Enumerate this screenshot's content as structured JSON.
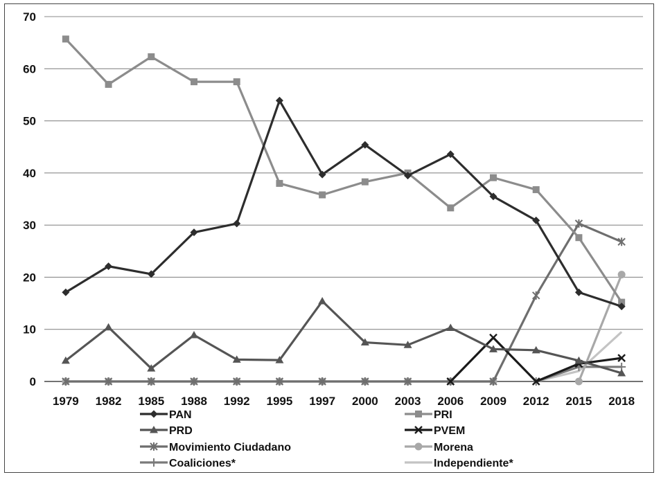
{
  "chart_data": {
    "type": "line",
    "title": "",
    "xlabel": "",
    "ylabel": "",
    "ylim": [
      0,
      70
    ],
    "yticks": [
      0,
      10,
      20,
      30,
      40,
      50,
      60,
      70
    ],
    "grid": "horizontal",
    "legend_position": "bottom",
    "categories": [
      "1979",
      "1982",
      "1985",
      "1988",
      "1992",
      "1995",
      "1997",
      "2000",
      "2003",
      "2006",
      "2009",
      "2012",
      "2015",
      "2018"
    ],
    "series": [
      {
        "name": "PAN",
        "color": "#2d2d2d",
        "marker": "diamond",
        "values": [
          17.1,
          22.1,
          20.6,
          28.6,
          30.3,
          53.9,
          39.7,
          45.4,
          39.5,
          43.6,
          35.5,
          30.9,
          17.1,
          14.4
        ]
      },
      {
        "name": "PRI",
        "color": "#8c8c8c",
        "marker": "square",
        "values": [
          65.7,
          57.0,
          62.3,
          57.5,
          57.5,
          38.0,
          35.8,
          38.3,
          40.0,
          33.3,
          39.1,
          36.8,
          27.6,
          15.2
        ]
      },
      {
        "name": "PRD",
        "color": "#555555",
        "marker": "triangle",
        "values": [
          4.0,
          10.4,
          2.5,
          8.9,
          4.2,
          4.1,
          15.4,
          7.5,
          7.0,
          10.3,
          6.2,
          6.0,
          4.0,
          1.6
        ]
      },
      {
        "name": "PVEM",
        "color": "#1a1a1a",
        "marker": "x",
        "values": [
          null,
          null,
          null,
          null,
          null,
          null,
          null,
          null,
          null,
          0,
          8.4,
          0,
          3.4,
          4.5
        ]
      },
      {
        "name": "Movimiento Ciudadano",
        "color": "#6e6e6e",
        "marker": "star",
        "values": [
          0,
          0,
          0,
          0,
          0,
          0,
          0,
          0,
          0,
          0,
          0,
          16.5,
          30.3,
          26.8
        ]
      },
      {
        "name": "Morena",
        "color": "#a8a8a8",
        "marker": "circle",
        "values": [
          0,
          0,
          0,
          0,
          0,
          0,
          0,
          0,
          0,
          0,
          0,
          null,
          0,
          20.5
        ]
      },
      {
        "name": "Coaliciones*",
        "color": "#7a7a7a",
        "marker": "plus",
        "values": [
          null,
          null,
          null,
          null,
          null,
          null,
          null,
          null,
          null,
          null,
          null,
          0,
          2.8,
          2.8
        ]
      },
      {
        "name": "Independiente*",
        "color": "#c4c4c4",
        "marker": "none",
        "values": [
          null,
          null,
          null,
          null,
          null,
          null,
          null,
          null,
          null,
          null,
          null,
          0,
          2.0,
          9.5
        ]
      }
    ]
  }
}
